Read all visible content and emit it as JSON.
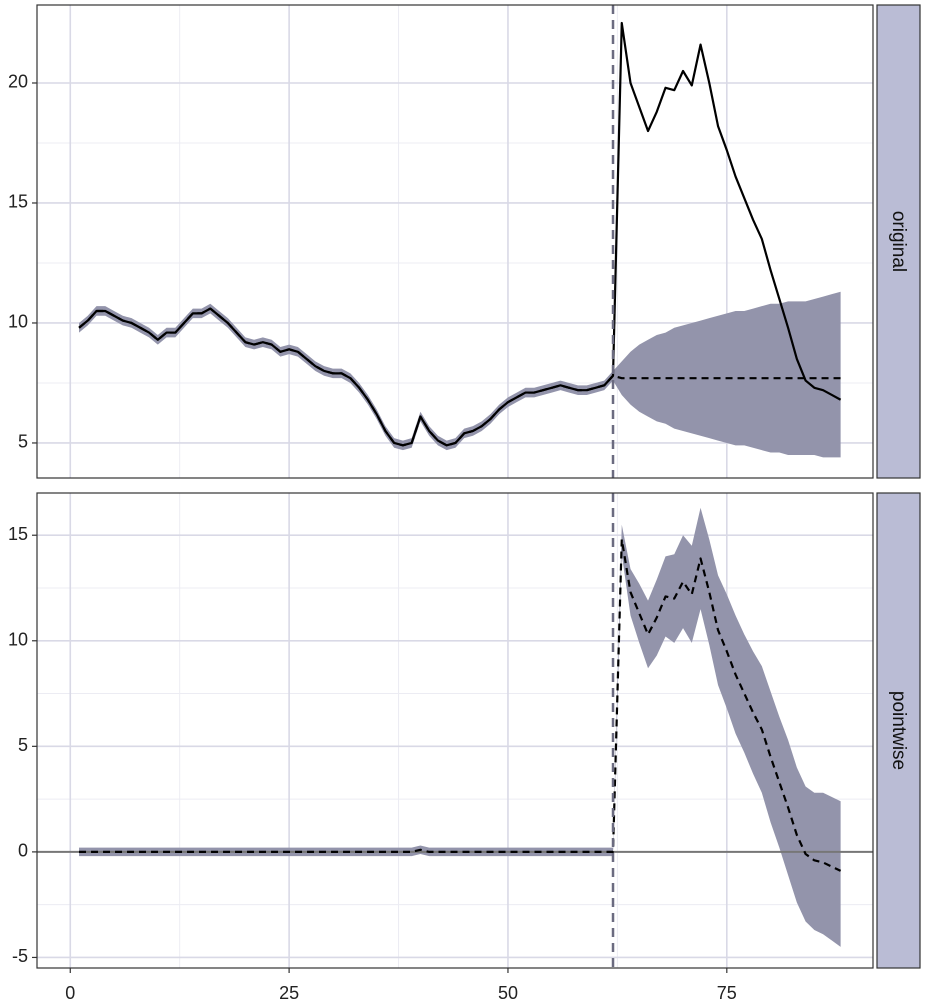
{
  "chart_data": [
    {
      "type": "line",
      "strip": "original",
      "x": [
        1,
        2,
        3,
        4,
        5,
        6,
        7,
        8,
        9,
        10,
        11,
        12,
        13,
        14,
        15,
        16,
        17,
        18,
        19,
        20,
        21,
        22,
        23,
        24,
        25,
        26,
        27,
        28,
        29,
        30,
        31,
        32,
        33,
        34,
        35,
        36,
        37,
        38,
        39,
        40,
        41,
        42,
        43,
        44,
        45,
        46,
        47,
        48,
        49,
        50,
        51,
        52,
        53,
        54,
        55,
        56,
        57,
        58,
        59,
        60,
        61,
        62,
        63,
        64,
        65,
        66,
        67,
        68,
        69,
        70,
        71,
        72,
        73,
        74,
        75,
        76,
        77,
        78,
        79,
        80,
        81,
        82,
        83,
        84,
        85,
        86,
        87,
        88
      ],
      "band": {
        "color": "#9394ab",
        "lower": [
          9.6,
          9.9,
          10.3,
          10.3,
          10.1,
          9.9,
          9.8,
          9.6,
          9.4,
          9.1,
          9.4,
          9.4,
          9.8,
          10.2,
          10.2,
          10.4,
          10.1,
          9.8,
          9.4,
          9.0,
          8.9,
          9.0,
          8.9,
          8.6,
          8.7,
          8.6,
          8.3,
          8.0,
          7.8,
          7.7,
          7.7,
          7.5,
          7.1,
          6.6,
          6.0,
          5.3,
          4.8,
          4.7,
          4.8,
          5.9,
          5.3,
          4.9,
          4.7,
          4.8,
          5.2,
          5.3,
          5.5,
          5.8,
          6.2,
          6.5,
          6.7,
          6.9,
          6.9,
          7.0,
          7.1,
          7.2,
          7.1,
          7.0,
          7.0,
          7.1,
          7.2,
          7.6,
          7.0,
          6.6,
          6.3,
          6.1,
          5.9,
          5.8,
          5.6,
          5.5,
          5.4,
          5.3,
          5.2,
          5.1,
          5.0,
          4.9,
          4.9,
          4.8,
          4.7,
          4.6,
          4.6,
          4.5,
          4.5,
          4.5,
          4.5,
          4.4,
          4.4,
          4.4
        ],
        "upper": [
          10.0,
          10.3,
          10.7,
          10.7,
          10.5,
          10.3,
          10.2,
          10.0,
          9.8,
          9.5,
          9.8,
          9.8,
          10.2,
          10.6,
          10.6,
          10.8,
          10.5,
          10.2,
          9.8,
          9.4,
          9.3,
          9.4,
          9.3,
          9.0,
          9.1,
          9.0,
          8.7,
          8.4,
          8.2,
          8.1,
          8.1,
          7.9,
          7.5,
          7.0,
          6.4,
          5.7,
          5.2,
          5.1,
          5.2,
          6.3,
          5.7,
          5.3,
          5.1,
          5.2,
          5.6,
          5.7,
          5.9,
          6.2,
          6.6,
          6.9,
          7.1,
          7.3,
          7.3,
          7.4,
          7.5,
          7.6,
          7.5,
          7.4,
          7.4,
          7.5,
          7.6,
          8.0,
          8.4,
          8.8,
          9.1,
          9.3,
          9.5,
          9.6,
          9.8,
          9.9,
          10.0,
          10.1,
          10.2,
          10.3,
          10.4,
          10.5,
          10.5,
          10.6,
          10.7,
          10.8,
          10.8,
          10.9,
          10.9,
          10.9,
          11.0,
          11.1,
          11.2,
          11.3
        ]
      },
      "series": [
        {
          "color": "#000000",
          "dash": false,
          "values": [
            9.8,
            10.1,
            10.5,
            10.5,
            10.3,
            10.1,
            10.0,
            9.8,
            9.6,
            9.3,
            9.6,
            9.6,
            10.0,
            10.4,
            10.4,
            10.6,
            10.3,
            10.0,
            9.6,
            9.2,
            9.1,
            9.2,
            9.1,
            8.8,
            8.9,
            8.8,
            8.5,
            8.2,
            8.0,
            7.9,
            7.9,
            7.7,
            7.3,
            6.8,
            6.2,
            5.5,
            5.0,
            4.9,
            5.0,
            6.1,
            5.5,
            5.1,
            4.9,
            5.0,
            5.4,
            5.5,
            5.7,
            6.0,
            6.4,
            6.7,
            6.9,
            7.1,
            7.1,
            7.2,
            7.3,
            7.4,
            7.3,
            7.2,
            7.2,
            7.3,
            7.4,
            7.8,
            22.5,
            20.0,
            19.0,
            18.0,
            18.8,
            19.8,
            19.7,
            20.5,
            19.9,
            21.6,
            20.0,
            18.2,
            17.2,
            16.1,
            15.2,
            14.3,
            13.5,
            12.2,
            11.0,
            9.8,
            8.5,
            7.6,
            7.3,
            7.2,
            7.0,
            6.8
          ]
        },
        {
          "color": "#000000",
          "dash": true,
          "values": [
            9.8,
            10.1,
            10.5,
            10.5,
            10.3,
            10.1,
            10.0,
            9.8,
            9.6,
            9.3,
            9.6,
            9.6,
            10.0,
            10.4,
            10.4,
            10.6,
            10.3,
            10.0,
            9.6,
            9.2,
            9.1,
            9.2,
            9.1,
            8.8,
            8.9,
            8.8,
            8.5,
            8.2,
            8.0,
            7.9,
            7.9,
            7.7,
            7.3,
            6.8,
            6.2,
            5.5,
            5.0,
            4.9,
            5.0,
            6.1,
            5.5,
            5.1,
            4.9,
            5.0,
            5.4,
            5.5,
            5.7,
            6.0,
            6.4,
            6.7,
            6.9,
            7.1,
            7.1,
            7.2,
            7.3,
            7.4,
            7.3,
            7.2,
            7.2,
            7.3,
            7.4,
            7.8,
            7.7,
            7.7,
            7.7,
            7.7,
            7.7,
            7.7,
            7.7,
            7.7,
            7.7,
            7.7,
            7.7,
            7.7,
            7.7,
            7.7,
            7.7,
            7.7,
            7.7,
            7.7,
            7.7,
            7.7,
            7.7,
            7.7,
            7.7,
            7.7,
            7.7,
            7.7
          ]
        }
      ],
      "intervention": 62,
      "xlim": [
        -3.8,
        91.7
      ],
      "xticks": [
        0,
        25,
        50,
        75
      ],
      "ylim": [
        3.54,
        23.25
      ],
      "yticks": [
        5,
        10,
        15,
        20
      ],
      "grid": true
    },
    {
      "type": "line",
      "strip": "pointwise",
      "x": [
        1,
        2,
        3,
        4,
        5,
        6,
        7,
        8,
        9,
        10,
        11,
        12,
        13,
        14,
        15,
        16,
        17,
        18,
        19,
        20,
        21,
        22,
        23,
        24,
        25,
        26,
        27,
        28,
        29,
        30,
        31,
        32,
        33,
        34,
        35,
        36,
        37,
        38,
        39,
        40,
        41,
        42,
        43,
        44,
        45,
        46,
        47,
        48,
        49,
        50,
        51,
        52,
        53,
        54,
        55,
        56,
        57,
        58,
        59,
        60,
        61,
        62,
        63,
        64,
        65,
        66,
        67,
        68,
        69,
        70,
        71,
        72,
        73,
        74,
        75,
        76,
        77,
        78,
        79,
        80,
        81,
        82,
        83,
        84,
        85,
        86,
        87,
        88
      ],
      "band": {
        "color": "#9394ab",
        "lower": [
          -0.2,
          -0.2,
          -0.2,
          -0.2,
          -0.2,
          -0.2,
          -0.2,
          -0.2,
          -0.2,
          -0.2,
          -0.2,
          -0.2,
          -0.2,
          -0.2,
          -0.2,
          -0.2,
          -0.2,
          -0.2,
          -0.2,
          -0.2,
          -0.2,
          -0.2,
          -0.2,
          -0.2,
          -0.2,
          -0.2,
          -0.2,
          -0.2,
          -0.2,
          -0.2,
          -0.2,
          -0.2,
          -0.2,
          -0.2,
          -0.2,
          -0.2,
          -0.2,
          -0.2,
          -0.2,
          -0.1,
          -0.2,
          -0.2,
          -0.2,
          -0.2,
          -0.2,
          -0.2,
          -0.2,
          -0.2,
          -0.2,
          -0.2,
          -0.2,
          -0.2,
          -0.2,
          -0.2,
          -0.2,
          -0.2,
          -0.2,
          -0.2,
          -0.2,
          -0.2,
          -0.2,
          -0.2,
          14.1,
          11.2,
          9.9,
          8.7,
          9.3,
          10.2,
          9.9,
          10.6,
          9.9,
          11.5,
          9.8,
          7.9,
          6.8,
          5.6,
          4.7,
          3.7,
          2.8,
          1.4,
          0.2,
          -1.1,
          -2.4,
          -3.3,
          -3.7,
          -3.9,
          -4.2,
          -4.5
        ],
        "upper": [
          0.2,
          0.2,
          0.2,
          0.2,
          0.2,
          0.2,
          0.2,
          0.2,
          0.2,
          0.2,
          0.2,
          0.2,
          0.2,
          0.2,
          0.2,
          0.2,
          0.2,
          0.2,
          0.2,
          0.2,
          0.2,
          0.2,
          0.2,
          0.2,
          0.2,
          0.2,
          0.2,
          0.2,
          0.2,
          0.2,
          0.2,
          0.2,
          0.2,
          0.2,
          0.2,
          0.2,
          0.2,
          0.2,
          0.2,
          0.3,
          0.2,
          0.2,
          0.2,
          0.2,
          0.2,
          0.2,
          0.2,
          0.2,
          0.2,
          0.2,
          0.2,
          0.2,
          0.2,
          0.2,
          0.2,
          0.2,
          0.2,
          0.2,
          0.2,
          0.2,
          0.2,
          0.2,
          15.5,
          13.4,
          12.7,
          11.9,
          12.9,
          14.0,
          14.1,
          15.0,
          14.5,
          16.3,
          14.8,
          13.1,
          12.2,
          11.2,
          10.3,
          9.5,
          8.8,
          7.6,
          6.4,
          5.3,
          4.0,
          3.1,
          2.8,
          2.8,
          2.6,
          2.4
        ]
      },
      "series": [
        {
          "color": "#000000",
          "dash": true,
          "values": [
            0,
            0,
            0,
            0,
            0,
            0,
            0,
            0,
            0,
            0,
            0,
            0,
            0,
            0,
            0,
            0,
            0,
            0,
            0,
            0,
            0,
            0,
            0,
            0,
            0,
            0,
            0,
            0,
            0,
            0,
            0,
            0,
            0,
            0,
            0,
            0,
            0,
            0,
            0,
            0.1,
            0,
            0,
            0,
            0,
            0,
            0,
            0,
            0,
            0,
            0,
            0,
            0,
            0,
            0,
            0,
            0,
            0,
            0,
            0,
            0,
            0,
            0,
            14.8,
            12.3,
            11.3,
            10.3,
            11.1,
            12.1,
            12.0,
            12.8,
            12.2,
            13.9,
            12.3,
            10.5,
            9.5,
            8.4,
            7.5,
            6.6,
            5.8,
            4.5,
            3.3,
            2.1,
            0.8,
            -0.1,
            -0.4,
            -0.5,
            -0.7,
            -0.9
          ]
        }
      ],
      "intervention": 62,
      "hline": 0,
      "xlim": [
        -3.8,
        91.7
      ],
      "xticks": [
        0,
        25,
        50,
        75
      ],
      "ylim": [
        -5.5,
        17.0
      ],
      "yticks": [
        -5,
        0,
        5,
        10,
        15
      ],
      "grid": true
    }
  ]
}
